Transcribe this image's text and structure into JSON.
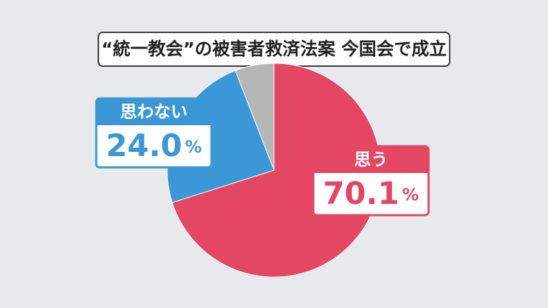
{
  "chart_data": {
    "type": "pie",
    "title": "“統一教会”の被害者救済法案 今国会で成立",
    "categories": [
      "思う",
      "思わない",
      null
    ],
    "values": [
      70.1,
      24.0,
      5.9
    ],
    "value_labels": [
      "70.1",
      "24.0",
      null
    ],
    "unit": "%",
    "colors": [
      "#e34763",
      "#3c97d6",
      "#b6b6b6"
    ]
  }
}
